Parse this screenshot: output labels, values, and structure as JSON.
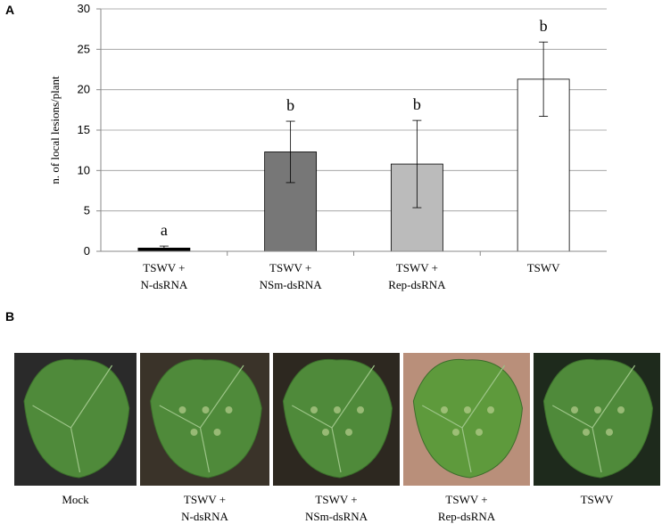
{
  "panel_a_label": "A",
  "panel_b_label": "B",
  "chart_data": {
    "type": "bar",
    "y_label": "n. of local lesions/plant",
    "categories": [
      "TSWV + N-dsRNA",
      "TSWV + NSm-dsRNA",
      "TSWV + Rep-dsRNA",
      "TSWV"
    ],
    "values": [
      0.4,
      12.3,
      10.8,
      21.3
    ],
    "errors": [
      0.25,
      3.8,
      5.4,
      4.6
    ],
    "letters": [
      "a",
      "b",
      "b",
      "b"
    ],
    "colors": [
      "#000000",
      "#777777",
      "#bbbbbb",
      "#ffffff"
    ],
    "ylim": [
      0,
      30
    ],
    "yticks": [
      0,
      5,
      10,
      15,
      20,
      25,
      30
    ],
    "grid": true
  },
  "photos": [
    "Mock",
    "TSWV + N-dsRNA",
    "TSWV + NSm-dsRNA",
    "TSWV + Rep-dsRNA",
    "TSWV"
  ]
}
